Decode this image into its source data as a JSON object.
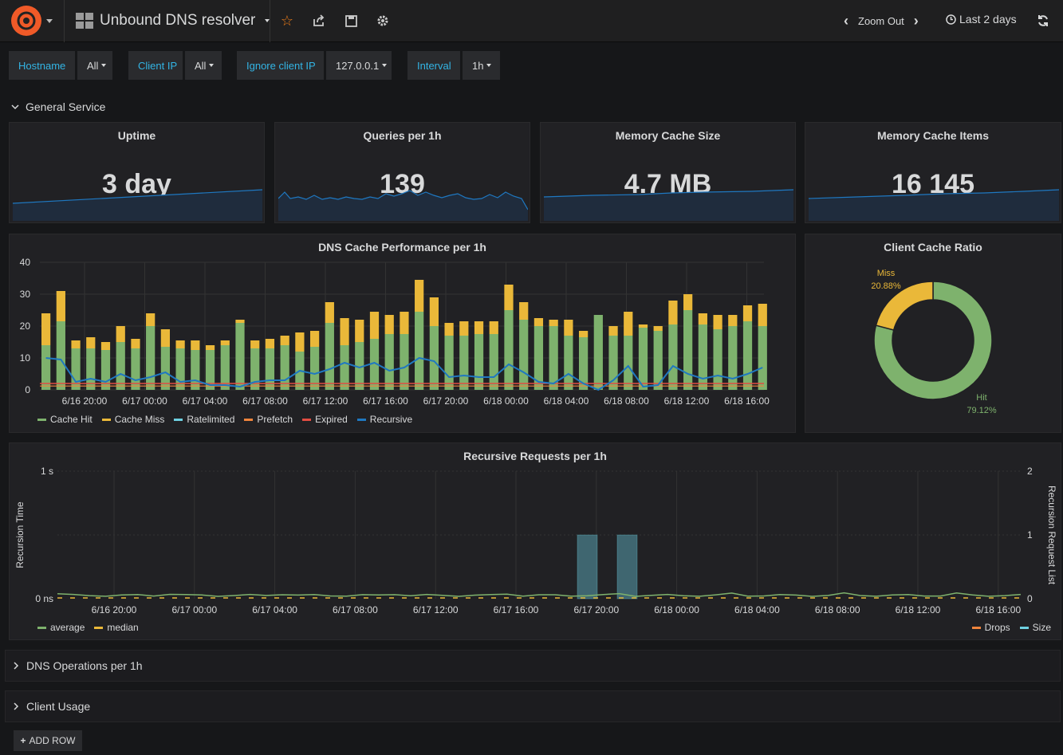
{
  "header": {
    "title": "Unbound DNS resolver",
    "zoom_label": "Zoom Out",
    "time_range": "Last 2 days"
  },
  "variables": [
    {
      "label": "Hostname",
      "value": "All"
    },
    {
      "label": "Client IP",
      "value": "All"
    },
    {
      "label": "Ignore client IP",
      "value": "127.0.0.1"
    },
    {
      "label": "Interval",
      "value": "1h"
    }
  ],
  "rows": {
    "general": "General Service",
    "dns_ops": "DNS Operations per 1h",
    "client_usage": "Client Usage",
    "add_row": "ADD ROW"
  },
  "stats": [
    {
      "title": "Uptime",
      "value": "3 day"
    },
    {
      "title": "Queries per 1h",
      "value": "139"
    },
    {
      "title": "Memory Cache Size",
      "value": "4.7 MB"
    },
    {
      "title": "Memory Cache Items",
      "value": "16 145"
    }
  ],
  "colors": {
    "cache_hit": "#7eb26d",
    "cache_miss": "#eab839",
    "ratelimited": "#6ed0e0",
    "prefetch": "#ef843c",
    "expired": "#e24d42",
    "recursive": "#1f78c1",
    "accent_blue": "#33b5e5"
  },
  "chart_data": [
    {
      "type": "bar",
      "title": "DNS Cache Performance per 1h",
      "ylim": [
        0,
        40
      ],
      "yticks": [
        "0",
        "10",
        "20",
        "30",
        "40"
      ],
      "xticks": [
        "6/16 20:00",
        "6/17 00:00",
        "6/17 04:00",
        "6/17 08:00",
        "6/17 12:00",
        "6/17 16:00",
        "6/17 20:00",
        "6/18 00:00",
        "6/18 04:00",
        "6/18 08:00",
        "6/18 12:00",
        "6/18 16:00"
      ],
      "series": [
        {
          "name": "Cache Hit",
          "values": [
            14,
            21.5,
            13,
            13,
            12.5,
            15,
            13,
            20,
            13.5,
            13,
            12.5,
            12.5,
            14,
            21,
            13,
            13,
            14,
            12,
            13.5,
            21,
            14,
            15,
            16,
            17.5,
            17.5,
            24.5,
            20,
            17,
            17,
            17.5,
            17.5,
            25,
            22,
            20,
            20,
            17,
            16.5,
            23.5,
            17,
            17,
            19.5,
            18.5,
            20.5,
            25,
            20.5,
            19,
            20,
            21.5,
            20
          ]
        },
        {
          "name": "Cache Miss",
          "values": [
            10,
            9.5,
            2.5,
            3.5,
            2.5,
            5,
            3,
            4,
            5.5,
            2.5,
            3,
            1.5,
            1.5,
            1,
            2.5,
            3,
            3,
            6,
            5,
            6.5,
            8.5,
            7,
            8.5,
            6,
            7,
            10,
            9,
            4,
            4.5,
            4,
            4,
            8,
            5.5,
            2.5,
            2,
            5,
            2,
            0,
            3,
            7.5,
            1,
            1.5,
            7.5,
            5,
            3.5,
            4.5,
            3.5,
            5,
            7
          ]
        },
        {
          "name": "Ratelimited",
          "values": []
        },
        {
          "name": "Prefetch",
          "values": []
        },
        {
          "name": "Expired",
          "values": []
        },
        {
          "name": "Recursive",
          "values": [
            10,
            9.5,
            2.5,
            3.5,
            2.5,
            5,
            3,
            4,
            5.5,
            2.5,
            3,
            1.5,
            1.5,
            1,
            2.5,
            3,
            3,
            6,
            5,
            6.5,
            8.5,
            7,
            8.5,
            6,
            7,
            10,
            9,
            4,
            4.5,
            4,
            4,
            8,
            5.5,
            2.5,
            2,
            5,
            2,
            0,
            3,
            7.5,
            1,
            1.5,
            7.5,
            5,
            3.5,
            4.5,
            3.5,
            5,
            7
          ]
        }
      ]
    },
    {
      "type": "pie",
      "title": "Client Cache Ratio",
      "slices": [
        {
          "name": "Hit",
          "value": 79.12,
          "label": "79.12%"
        },
        {
          "name": "Miss",
          "value": 20.88,
          "label": "20.88%"
        }
      ]
    },
    {
      "type": "line",
      "title": "Recursive Requests per 1h",
      "ylabel": "Recursion Time",
      "y2label": "Recursion Request List",
      "yticks": [
        "1 s",
        "0 ns"
      ],
      "y2ticks": [
        "2",
        "1",
        "0"
      ],
      "xticks": [
        "6/16 20:00",
        "6/17 00:00",
        "6/17 04:00",
        "6/17 08:00",
        "6/17 12:00",
        "6/17 16:00",
        "6/17 20:00",
        "6/18 00:00",
        "6/18 04:00",
        "6/18 08:00",
        "6/18 12:00",
        "6/18 16:00"
      ],
      "series": [
        {
          "name": "average"
        },
        {
          "name": "median"
        },
        {
          "name": "Drops"
        },
        {
          "name": "Size",
          "bars": [
            {
              "x": "6/17 20:00",
              "value": 1
            },
            {
              "x": "6/17 22:00",
              "value": 1
            }
          ]
        }
      ]
    }
  ]
}
